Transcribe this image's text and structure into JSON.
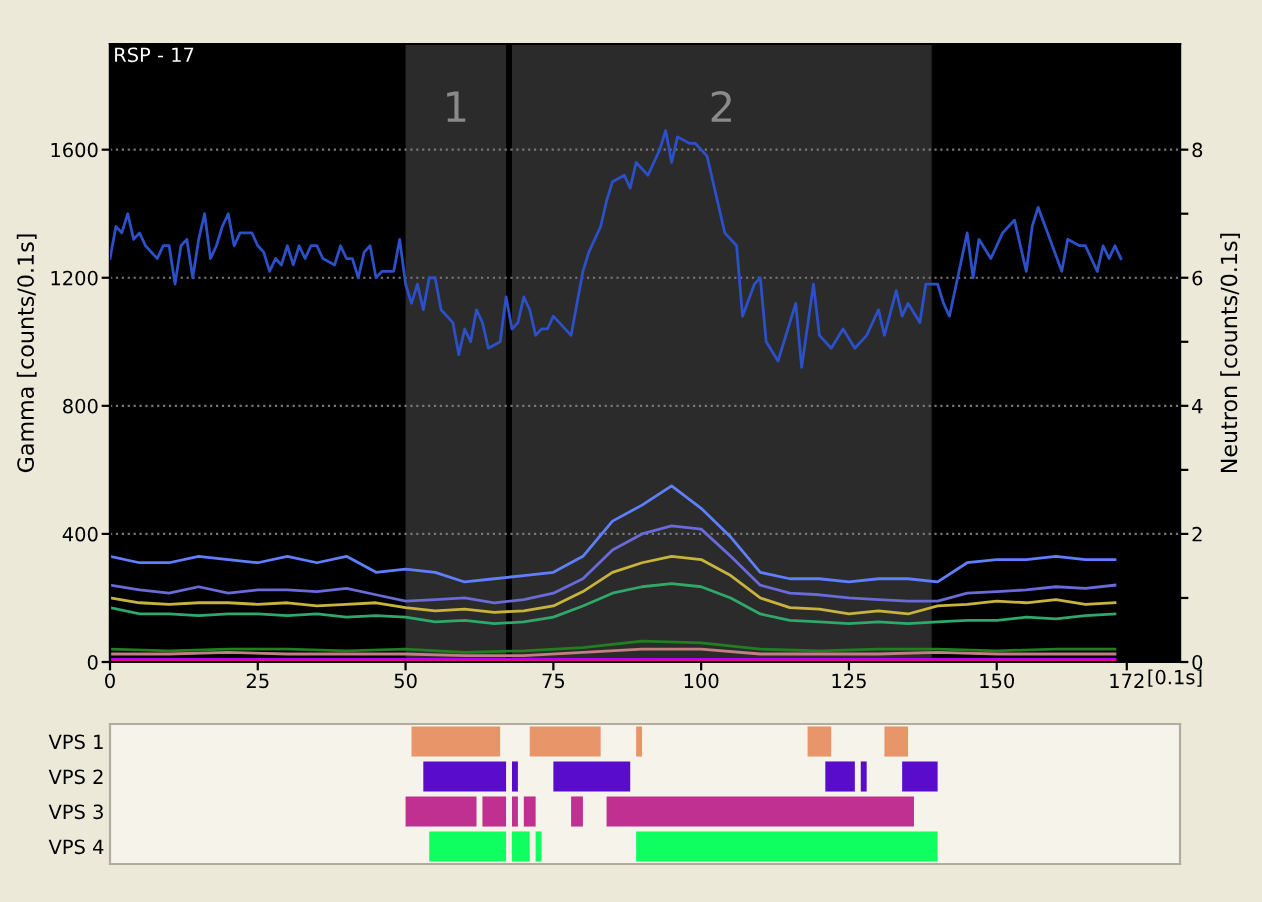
{
  "chart_data": [
    {
      "type": "line",
      "ylabel": "Gamma [counts/0.1s]",
      "y2label": "Neutron [counts/0.1s]",
      "xlabel": "[0.1s]",
      "annotations": [
        "RSP - 17"
      ],
      "grid": "y",
      "xlim": [
        0,
        181
      ],
      "xticks": [
        0,
        25,
        50,
        75,
        100,
        125,
        150,
        172
      ],
      "ylim": [
        0,
        1930
      ],
      "yticks": [
        0,
        400,
        800,
        1200,
        1600
      ],
      "y2lim": [
        0,
        9.65
      ],
      "y2ticks": [
        0,
        {
          "value": 1,
          "label": null
        },
        2,
        {
          "value": 3,
          "label": null
        },
        4,
        {
          "value": 5,
          "label": null
        },
        6,
        {
          "value": 7,
          "label": null
        },
        8
      ],
      "bands": [
        {
          "axis": "x",
          "from": 50,
          "to": 67,
          "label": "1",
          "color": "#2b2b2b"
        },
        {
          "axis": "x",
          "from": 68,
          "to": 139,
          "label": "2",
          "color": "#2b2b2b"
        }
      ],
      "x": [
        0,
        5,
        10,
        15,
        20,
        25,
        30,
        35,
        40,
        45,
        50,
        55,
        60,
        65,
        70,
        75,
        80,
        85,
        90,
        95,
        100,
        105,
        110,
        115,
        120,
        125,
        130,
        135,
        140,
        145,
        150,
        155,
        160,
        165,
        170
      ],
      "series": [
        {
          "color": "#2c50c8",
          "axis": "y2",
          "x": [
            0,
            1,
            2,
            3,
            4,
            5,
            6,
            8,
            9,
            10,
            11,
            12,
            13,
            14,
            15,
            16,
            17,
            18,
            19,
            20,
            21,
            22,
            24,
            25,
            26,
            27,
            28,
            29,
            30,
            31,
            32,
            33,
            34,
            35,
            36,
            38,
            39,
            40,
            41,
            42,
            43,
            44,
            45,
            46,
            48,
            49,
            50,
            51,
            52,
            53,
            54,
            55,
            56,
            58,
            59,
            60,
            61,
            62,
            63,
            64,
            66,
            67,
            68,
            69,
            70,
            71,
            72,
            73,
            74,
            75,
            76,
            78,
            79,
            80,
            81,
            82,
            83,
            84,
            85,
            87,
            88,
            89,
            91,
            92,
            93,
            94,
            95,
            96,
            98,
            99,
            101,
            102,
            104,
            106,
            107,
            109,
            110,
            111,
            113,
            115,
            116,
            117,
            119,
            120,
            122,
            124,
            126,
            128,
            130,
            131,
            133,
            134,
            135,
            137,
            138,
            140,
            141,
            142,
            145,
            146,
            147,
            149,
            151,
            152,
            153,
            155,
            156,
            157,
            159,
            161,
            162,
            164,
            165,
            167,
            168,
            169,
            170,
            171
          ],
          "values": [
            6.3,
            6.8,
            6.7,
            7.0,
            6.6,
            6.7,
            6.5,
            6.3,
            6.5,
            6.5,
            5.9,
            6.5,
            6.6,
            6.0,
            6.6,
            7.0,
            6.3,
            6.5,
            6.8,
            7.0,
            6.5,
            6.7,
            6.7,
            6.5,
            6.4,
            6.1,
            6.3,
            6.2,
            6.5,
            6.2,
            6.5,
            6.3,
            6.5,
            6.5,
            6.3,
            6.2,
            6.5,
            6.3,
            6.3,
            6.0,
            6.4,
            6.5,
            6.0,
            6.1,
            6.1,
            6.6,
            5.9,
            5.6,
            5.9,
            5.5,
            6.0,
            6.0,
            5.5,
            5.3,
            4.8,
            5.2,
            5.0,
            5.5,
            5.3,
            4.9,
            5.0,
            5.7,
            5.2,
            5.3,
            5.7,
            5.5,
            5.1,
            5.2,
            5.2,
            5.4,
            5.3,
            5.1,
            5.6,
            6.1,
            6.4,
            6.6,
            6.8,
            7.2,
            7.5,
            7.6,
            7.4,
            7.8,
            7.6,
            7.8,
            8.0,
            8.3,
            7.8,
            8.2,
            8.1,
            8.1,
            7.9,
            7.5,
            6.7,
            6.5,
            5.4,
            5.9,
            6.0,
            5.0,
            4.7,
            5.3,
            5.6,
            4.6,
            5.9,
            5.1,
            4.9,
            5.2,
            4.9,
            5.1,
            5.5,
            5.1,
            5.8,
            5.4,
            5.6,
            5.3,
            5.9,
            5.9,
            5.6,
            5.4,
            6.7,
            6.0,
            6.6,
            6.3,
            6.7,
            6.8,
            6.9,
            6.1,
            6.8,
            7.1,
            6.6,
            6.1,
            6.6,
            6.5,
            6.5,
            6.1,
            6.5,
            6.3,
            6.5,
            6.3
          ]
        },
        {
          "color": "#5f7fff",
          "values": [
            330,
            310,
            310,
            330,
            320,
            310,
            330,
            310,
            330,
            280,
            290,
            280,
            250,
            260,
            270,
            280,
            330,
            440,
            490,
            550,
            480,
            390,
            280,
            260,
            260,
            250,
            260,
            260,
            250,
            310,
            320,
            320,
            330,
            320,
            320
          ]
        },
        {
          "color": "#6a6ad8",
          "values": [
            240,
            225,
            215,
            235,
            215,
            225,
            225,
            220,
            230,
            210,
            190,
            195,
            200,
            185,
            195,
            215,
            260,
            350,
            400,
            425,
            415,
            330,
            240,
            215,
            210,
            200,
            195,
            190,
            190,
            215,
            220,
            225,
            235,
            230,
            240
          ]
        },
        {
          "color": "#c8b43c",
          "values": [
            200,
            185,
            180,
            185,
            185,
            180,
            185,
            175,
            180,
            185,
            170,
            160,
            165,
            155,
            160,
            175,
            220,
            280,
            310,
            330,
            320,
            270,
            200,
            170,
            165,
            150,
            160,
            150,
            175,
            180,
            190,
            185,
            195,
            180,
            185
          ]
        },
        {
          "color": "#2fa86a",
          "values": [
            170,
            150,
            150,
            145,
            150,
            150,
            145,
            150,
            140,
            145,
            140,
            125,
            130,
            120,
            125,
            140,
            175,
            215,
            235,
            245,
            235,
            200,
            150,
            130,
            125,
            120,
            125,
            120,
            125,
            130,
            130,
            140,
            135,
            145,
            150
          ]
        },
        {
          "color": "#208020",
          "x": [
            0,
            10,
            20,
            30,
            40,
            50,
            60,
            70,
            80,
            90,
            100,
            110,
            120,
            130,
            140,
            150,
            160,
            170
          ],
          "values": [
            40,
            35,
            40,
            40,
            35,
            40,
            30,
            35,
            45,
            65,
            60,
            40,
            35,
            40,
            40,
            35,
            40,
            40
          ]
        },
        {
          "color": "#c08080",
          "x": [
            0,
            10,
            20,
            30,
            40,
            50,
            60,
            70,
            80,
            90,
            100,
            110,
            120,
            130,
            140,
            150,
            160,
            170
          ],
          "values": [
            25,
            25,
            30,
            25,
            25,
            25,
            20,
            20,
            30,
            40,
            40,
            25,
            25,
            25,
            30,
            25,
            25,
            25
          ]
        },
        {
          "color": "#b000ff",
          "x": [
            0,
            170
          ],
          "values": [
            8,
            8
          ]
        },
        {
          "color": "#ff1060",
          "x": [
            0,
            170
          ],
          "values": [
            1,
            1
          ]
        }
      ]
    },
    {
      "type": "bar",
      "orientation": "horizontal",
      "categories": [
        "VPS 1",
        "VPS 2",
        "VPS 3",
        "VPS 4"
      ],
      "xlim": [
        0,
        181
      ],
      "tick_labels": "y",
      "series": [
        {
          "colors": [
            "#e8956a",
            "#5a0ccc",
            "#c03090",
            "#10ff60"
          ],
          "base": [
            51,
            53,
            50,
            54
          ],
          "values": [
            15,
            14,
            12,
            13
          ]
        },
        {
          "colors": [
            "#e8956a",
            "#5a0ccc",
            "#c03090",
            "#10ff60"
          ],
          "base": [
            71,
            68,
            63,
            68
          ],
          "values": [
            12,
            1,
            4,
            3
          ]
        },
        {
          "colors": [
            "#e8956a",
            "#5a0ccc",
            "#c03090",
            "#10ff60"
          ],
          "base": [
            89,
            75,
            68,
            72
          ],
          "values": [
            1,
            13,
            1,
            1
          ]
        },
        {
          "colors": [
            "#e8956a",
            "#5a0ccc",
            "#c03090",
            "#10ff60"
          ],
          "base": [
            118,
            121,
            70,
            89
          ],
          "values": [
            4,
            5,
            2,
            51
          ]
        },
        {
          "colors": [
            "#e8956a",
            "#5a0ccc",
            "#c03090",
            "#10ff60"
          ],
          "base": [
            131,
            127,
            78,
            null
          ],
          "values": [
            4,
            1,
            2,
            null
          ]
        },
        {
          "colors": [
            "#e8956a",
            "#5a0ccc",
            "#c03090",
            "#10ff60"
          ],
          "base": [
            null,
            134,
            84,
            null
          ],
          "values": [
            null,
            6,
            52,
            null
          ]
        }
      ]
    }
  ]
}
